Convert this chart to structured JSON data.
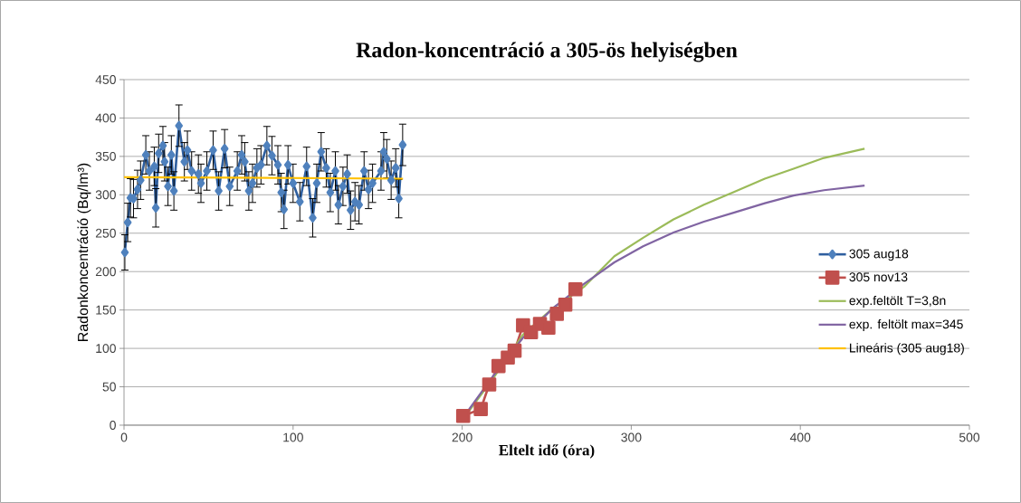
{
  "chart_data": {
    "type": "line",
    "title": "Radon-koncentráció a 305-ös helyiségben",
    "xlabel": "Eltelt idő (óra)",
    "ylabel": "Radonkoncentráció (Bq/lm³)",
    "xlim": [
      0,
      500
    ],
    "xticks": [
      0,
      100,
      200,
      300,
      400,
      500
    ],
    "ylim": [
      0,
      450
    ],
    "yticks": [
      0,
      50,
      100,
      150,
      200,
      250,
      300,
      350,
      400,
      450
    ],
    "grid": "y",
    "legend": "right",
    "series": [
      {
        "name": "305 aug18",
        "color": "#2f5f9f",
        "marker": "diamond",
        "x": [
          0.5,
          2.2,
          3.8,
          5.6,
          8,
          9.8,
          12.9,
          15,
          17.9,
          18.8,
          20.5,
          23,
          24,
          26,
          28,
          29.5,
          32.5,
          35.7,
          37.5,
          40,
          44,
          45.5,
          49,
          52.7,
          56,
          59.5,
          62.5,
          67,
          69.6,
          71.4,
          73.8,
          76,
          78.6,
          81,
          84.5,
          87.5,
          91,
          93,
          94.6,
          97,
          100,
          104,
          108,
          111.6,
          114,
          116.6,
          119.6,
          122,
          125,
          126.8,
          129.5,
          132,
          134,
          136.6,
          139,
          142,
          144.6,
          147,
          152,
          153.6,
          155.4,
          158,
          160.7,
          162.5,
          164.8
        ],
        "values": [
          225,
          264,
          296,
          295,
          307,
          319,
          352,
          331,
          337,
          283,
          354,
          364,
          343,
          311,
          352,
          305,
          390,
          343,
          358,
          331,
          327,
          315,
          331,
          358,
          305,
          360,
          311,
          331,
          352,
          343,
          305,
          315,
          335,
          339,
          364,
          351,
          339,
          303,
          281,
          339,
          315,
          291,
          337,
          270,
          315,
          356,
          335,
          303,
          331,
          287,
          311,
          327,
          280,
          291,
          287,
          331,
          307,
          315,
          331,
          356,
          347,
          319,
          335,
          295,
          365
        ],
        "errors": [
          23,
          25,
          25,
          25,
          25,
          25,
          25,
          25,
          25,
          25,
          25,
          25,
          25,
          25,
          25,
          25,
          27,
          25,
          25,
          25,
          25,
          25,
          25,
          25,
          25,
          25,
          25,
          25,
          25,
          25,
          25,
          25,
          25,
          25,
          25,
          25,
          25,
          25,
          25,
          25,
          25,
          25,
          25,
          25,
          25,
          25,
          25,
          25,
          25,
          25,
          25,
          25,
          25,
          25,
          25,
          25,
          25,
          25,
          25,
          25,
          25,
          25,
          25,
          25,
          27
        ]
      },
      {
        "name": "305 nov13",
        "color": "#c0504d",
        "marker": "square",
        "x": [
          200.6,
          211,
          216,
          221.5,
          227,
          231,
          236,
          240.7,
          246,
          251,
          256,
          261,
          267
        ],
        "values": [
          12,
          21,
          53,
          77,
          88,
          97,
          130,
          121,
          132,
          127,
          145,
          157,
          177
        ]
      },
      {
        "name": "exp.feltölt T=3,8n",
        "color": "#9bbb59",
        "marker": "none",
        "x": [
          200.6,
          219,
          236,
          254,
          272,
          290,
          307,
          325,
          343,
          361,
          379,
          396,
          414,
          438
        ],
        "values": [
          8,
          63,
          118,
          153,
          180,
          220,
          244,
          268,
          287,
          304,
          321,
          334,
          348,
          360
        ]
      },
      {
        "name": "exp. feltölt max=345",
        "color": "#8064a2",
        "marker": "none",
        "x": [
          200.6,
          219,
          236,
          254,
          272,
          290,
          307,
          325,
          343,
          361,
          379,
          396,
          414,
          438
        ],
        "values": [
          10,
          66,
          114,
          153,
          184,
          212,
          233,
          251,
          265,
          277,
          289,
          299,
          306,
          312
        ]
      },
      {
        "name": "Lineáris (305 aug18)",
        "color": "#ffc000",
        "marker": "none",
        "x": [
          0,
          165
        ],
        "values": [
          323,
          321
        ]
      }
    ]
  }
}
